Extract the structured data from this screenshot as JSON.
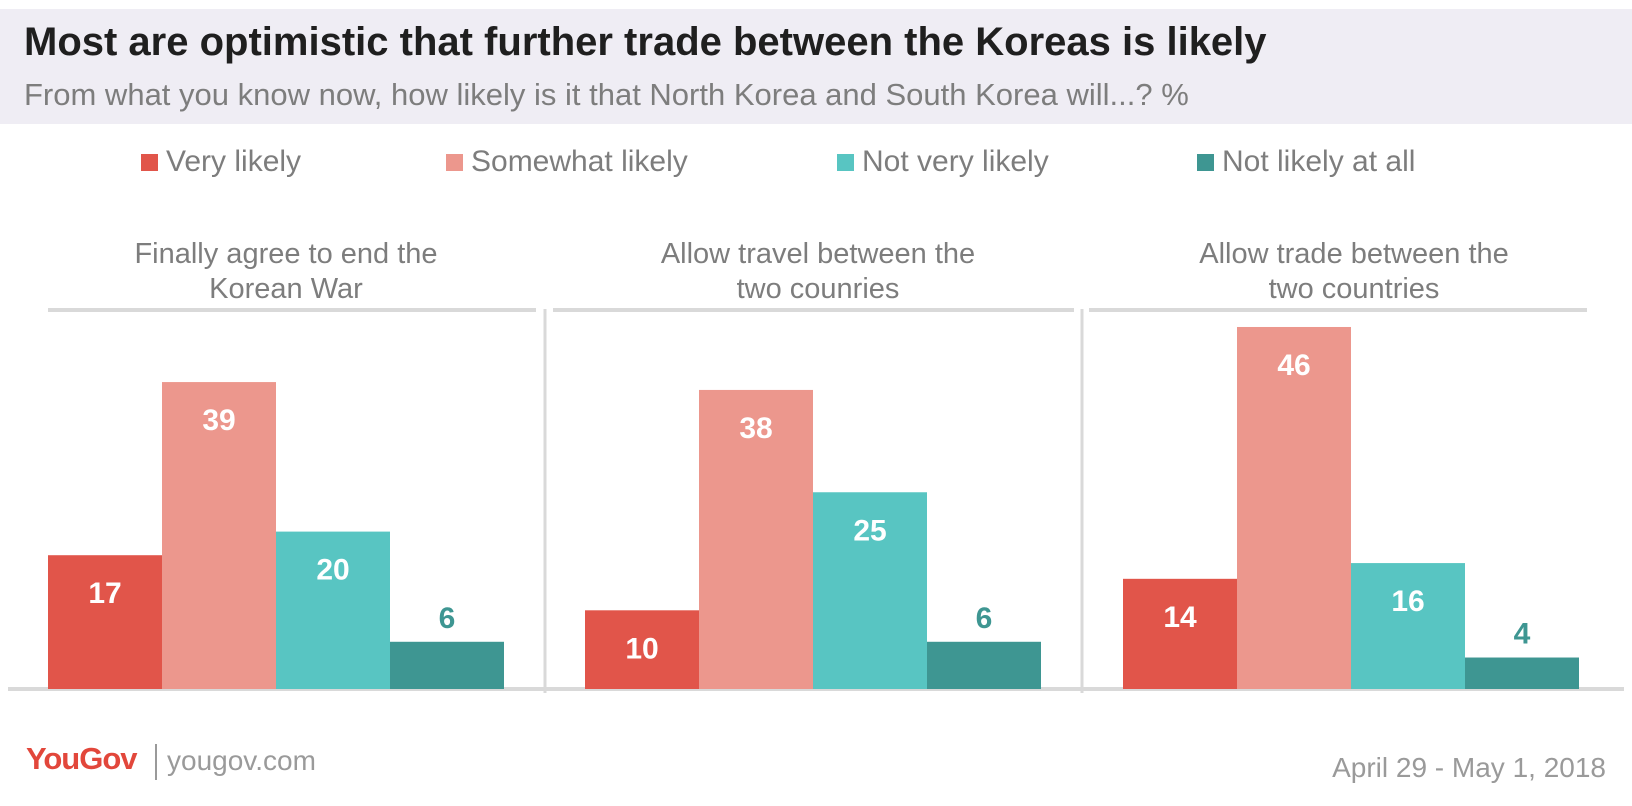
{
  "chart_data": {
    "type": "bar",
    "title": "Most are optimistic that further trade between the Koreas is likely",
    "subtitle": "From what you know now, how likely is it that North Korea and South Korea will...? %",
    "legend": [
      {
        "name": "Very likely",
        "color": "#e1554a"
      },
      {
        "name": "Somewhat likely",
        "color": "#ec978d"
      },
      {
        "name": "Not very likely",
        "color": "#58c5c2"
      },
      {
        "name": "Not likely at all",
        "color": "#3e9692"
      }
    ],
    "legend_placement": "top",
    "grid": false,
    "ylim": [
      0,
      50
    ],
    "panels": [
      {
        "title_lines": [
          "Finally agree to end the",
          "Korean War"
        ],
        "values": [
          17,
          39,
          20,
          6
        ]
      },
      {
        "title_lines": [
          "Allow travel between the",
          "two counries"
        ],
        "values": [
          10,
          38,
          25,
          6
        ]
      },
      {
        "title_lines": [
          "Allow trade between the",
          "two countries"
        ],
        "values": [
          14,
          46,
          16,
          4
        ]
      }
    ]
  },
  "footer": {
    "brand": "YouGov",
    "url": "yougov.com",
    "date": "April 29 - May 1, 2018"
  }
}
